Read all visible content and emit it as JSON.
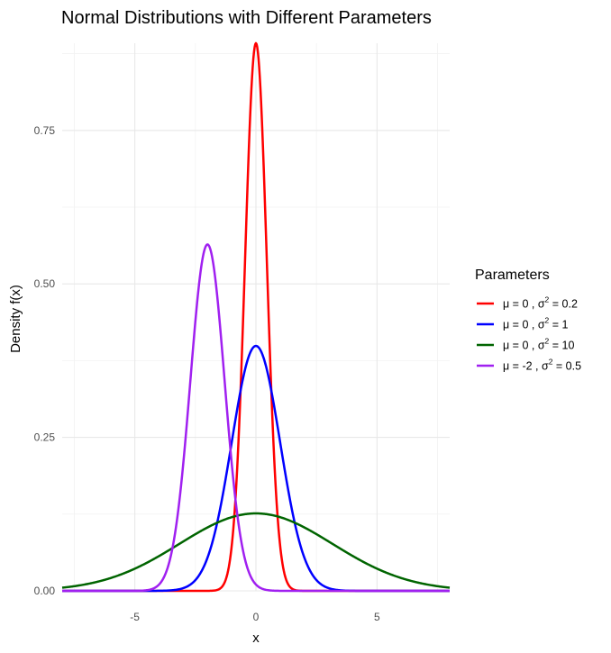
{
  "chart_data": {
    "type": "line",
    "title": "Normal Distributions with Different Parameters",
    "xlabel": "x",
    "ylabel": "Density f(x)",
    "xlim": [
      -8,
      8
    ],
    "ylim": [
      0,
      0.892
    ],
    "x_ticks": [
      -5,
      0,
      5
    ],
    "x_tick_labels": [
      "-5",
      "0",
      "5"
    ],
    "y_ticks": [
      0,
      0.25,
      0.5,
      0.75
    ],
    "y_tick_labels": [
      "0.00",
      "0.25",
      "0.50",
      "0.75"
    ],
    "grid": true,
    "legend_position": "right",
    "legend_title": "Parameters",
    "curve": "normal probability density function",
    "series": [
      {
        "mu": 0,
        "sigma2": 0.2,
        "color": "#ff0000",
        "label_mu": "μ = 0 , σ",
        "label_sup": "2",
        "label_rest": " = 0.2"
      },
      {
        "mu": 0,
        "sigma2": 1,
        "color": "#0000ff",
        "label_mu": "μ = 0 , σ",
        "label_sup": "2",
        "label_rest": " = 1"
      },
      {
        "mu": 0,
        "sigma2": 10,
        "color": "#006400",
        "label_mu": "μ = 0 , σ",
        "label_sup": "2",
        "label_rest": " = 10"
      },
      {
        "mu": -2,
        "sigma2": 0.5,
        "color": "#a020f0",
        "label_mu": "μ = -2 , σ",
        "label_sup": "2",
        "label_rest": " = 0.5"
      }
    ]
  }
}
